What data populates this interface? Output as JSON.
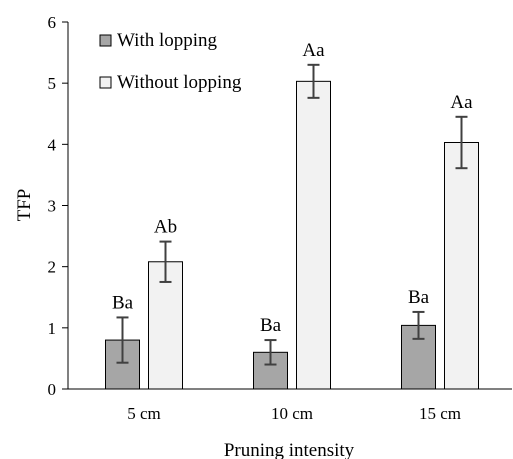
{
  "chart_data": {
    "type": "bar",
    "xlabel": "Pruning intensity",
    "ylabel": "TFP",
    "ylim": [
      0,
      6
    ],
    "yticks": [
      0,
      1,
      2,
      3,
      4,
      5,
      6
    ],
    "categories": [
      "5 cm",
      "10 cm",
      "15 cm"
    ],
    "legend_position": "top-left",
    "grid": false,
    "series": [
      {
        "name": "With lopping",
        "color": "#a6a6a6",
        "values": [
          0.8,
          0.6,
          1.04
        ],
        "errors": [
          0.37,
          0.2,
          0.22
        ],
        "labels": [
          "Ba",
          "Ba",
          "Ba"
        ]
      },
      {
        "name": "Without lopping",
        "color": "#f2f2f2",
        "values": [
          2.08,
          5.03,
          4.03
        ],
        "errors": [
          0.33,
          0.27,
          0.42
        ],
        "labels": [
          "Ab",
          "Aa",
          "Aa"
        ]
      }
    ]
  }
}
